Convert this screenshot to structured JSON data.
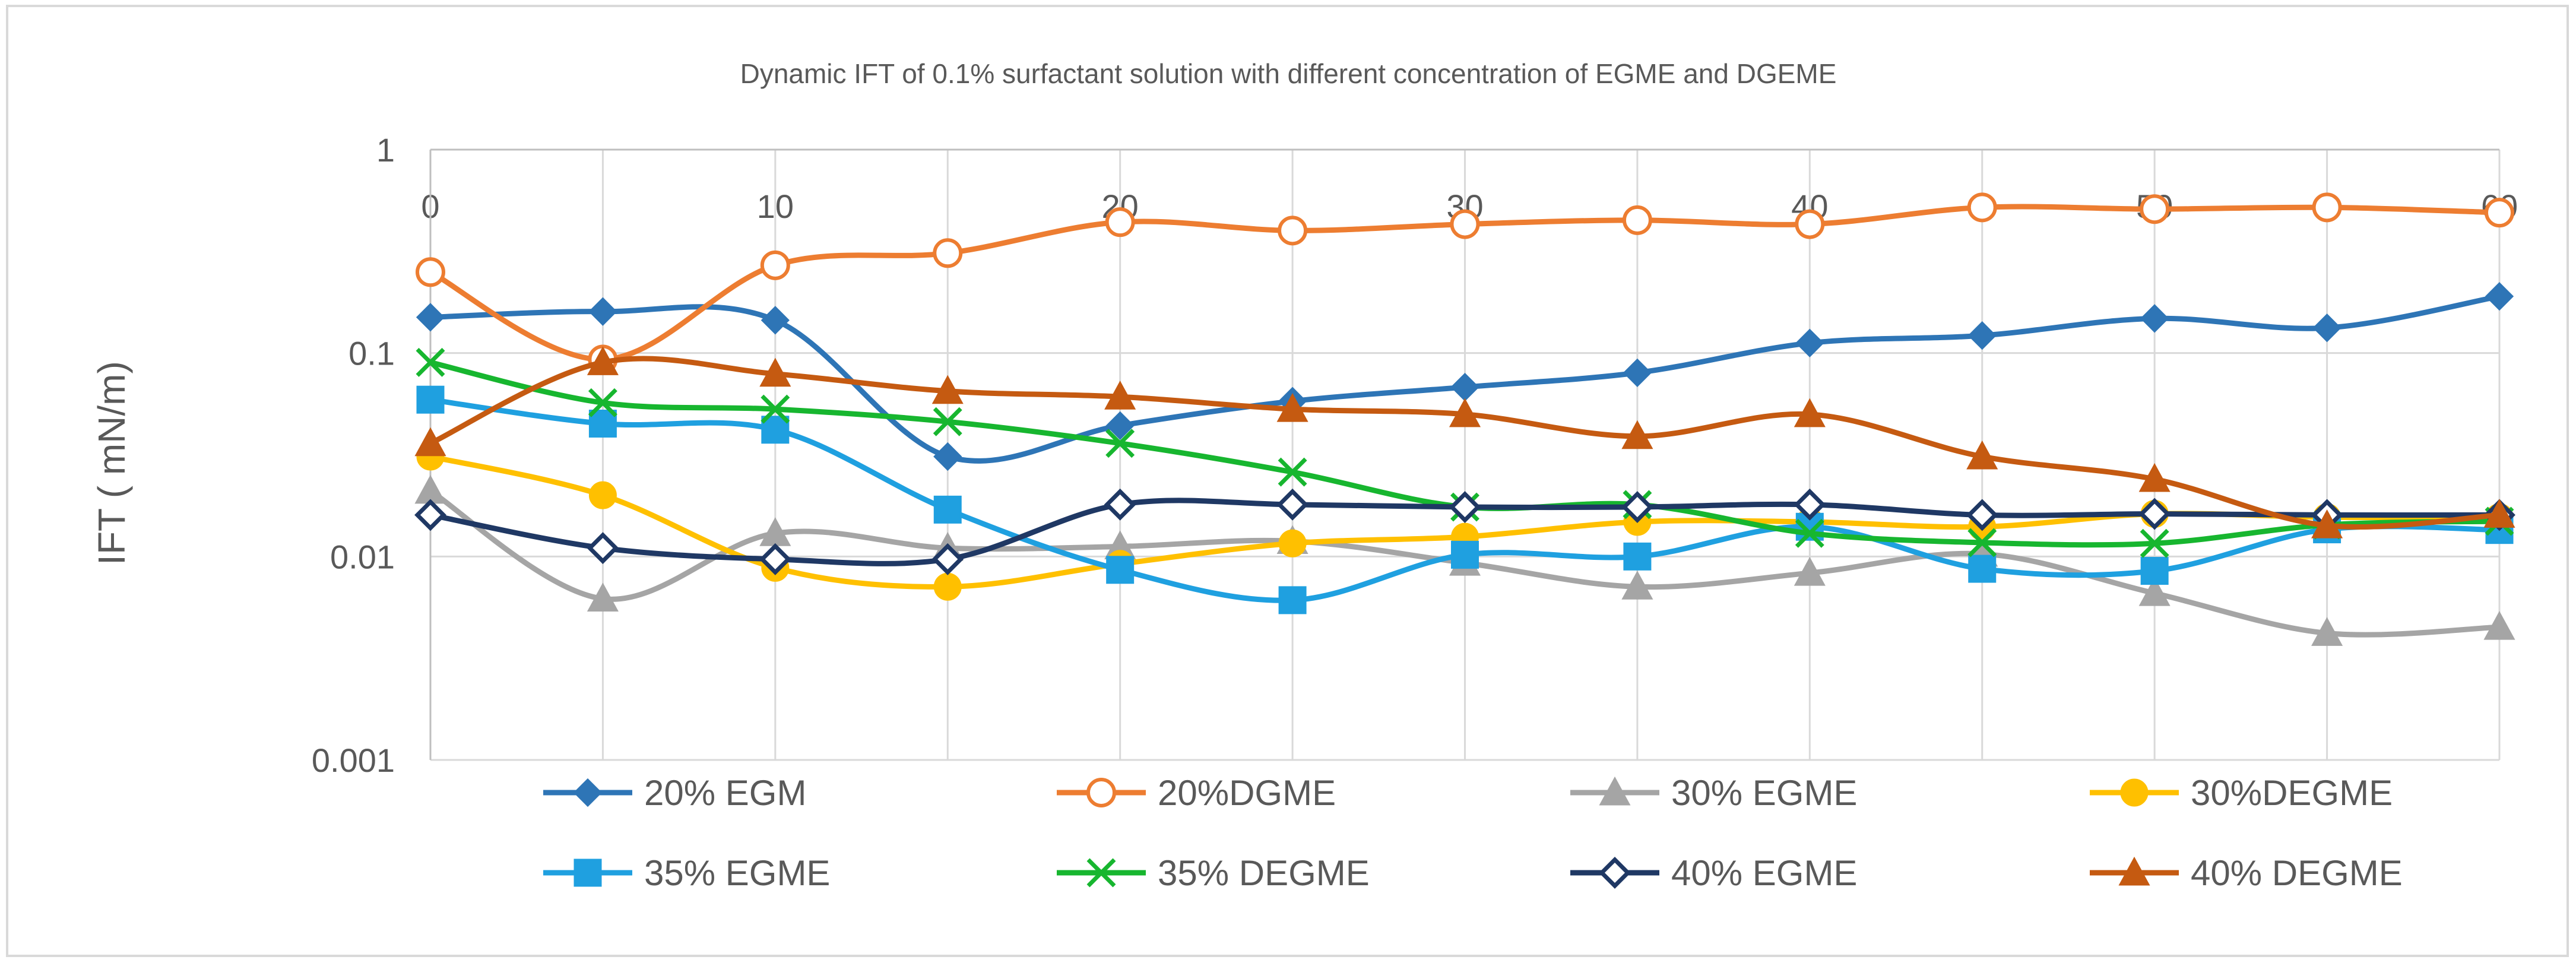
{
  "chart_data": {
    "type": "line",
    "title": "Dynamic IFT of 0.1% surfactant solution with different concentration of EGME and DGEME",
    "xlabel": "",
    "ylabel": "IFT ( mN/m)",
    "yscale": "log",
    "ylim": [
      0.001,
      1
    ],
    "xlim": [
      0,
      60
    ],
    "y_ticks": [
      "1",
      "0.1",
      "0.01",
      "0.001"
    ],
    "x_ticks": [
      "0",
      "10",
      "20",
      "30",
      "40",
      "50",
      "60"
    ],
    "x": [
      0,
      5,
      10,
      15,
      20,
      25,
      30,
      35,
      40,
      45,
      50,
      55,
      60
    ],
    "legend_position": "bottom",
    "series": [
      {
        "name": "20% EGM",
        "color": "#2E75B6",
        "marker": "diamond",
        "filled": true,
        "values": [
          0.15,
          0.16,
          0.145,
          0.031,
          0.044,
          0.058,
          0.068,
          0.08,
          0.112,
          0.122,
          0.148,
          0.133,
          0.19
        ]
      },
      {
        "name": "20%DGME",
        "color": "#ED7D31",
        "marker": "circle",
        "filled": false,
        "values": [
          0.25,
          0.093,
          0.27,
          0.31,
          0.44,
          0.4,
          0.43,
          0.45,
          0.43,
          0.52,
          0.51,
          0.52,
          0.49
        ]
      },
      {
        "name": "30% EGME",
        "color": "#A5A5A5",
        "marker": "triangle",
        "filled": true,
        "values": [
          0.021,
          0.0062,
          0.013,
          0.011,
          0.0112,
          0.0119,
          0.0093,
          0.0071,
          0.0083,
          0.0103,
          0.0066,
          0.0042,
          0.0045
        ]
      },
      {
        "name": "30%DEGME",
        "color": "#FFC000",
        "marker": "circle",
        "filled": true,
        "values": [
          0.031,
          0.02,
          0.0088,
          0.0071,
          0.0092,
          0.0116,
          0.0125,
          0.0148,
          0.0148,
          0.014,
          0.0162,
          0.0156,
          0.0156
        ]
      },
      {
        "name": "35% EGME",
        "color": "#1FA0E0",
        "marker": "square",
        "filled": true,
        "values": [
          0.059,
          0.045,
          0.042,
          0.017,
          0.0086,
          0.0061,
          0.0102,
          0.01,
          0.014,
          0.0087,
          0.0085,
          0.0136,
          0.0135
        ]
      },
      {
        "name": "35% DEGME",
        "color": "#17B62F",
        "marker": "x",
        "filled": true,
        "values": [
          0.09,
          0.057,
          0.053,
          0.046,
          0.036,
          0.026,
          0.0175,
          0.018,
          0.013,
          0.0117,
          0.0116,
          0.0143,
          0.0149
        ]
      },
      {
        "name": "40% EGME",
        "color": "#1F3864",
        "marker": "diamond",
        "filled": false,
        "values": [
          0.016,
          0.011,
          0.0097,
          0.0097,
          0.018,
          0.018,
          0.0175,
          0.0175,
          0.018,
          0.016,
          0.0162,
          0.016,
          0.016
        ]
      },
      {
        "name": "40% DEGME",
        "color": "#C55A11",
        "marker": "triangle",
        "filled": true,
        "values": [
          0.036,
          0.09,
          0.079,
          0.065,
          0.061,
          0.053,
          0.05,
          0.039,
          0.05,
          0.031,
          0.024,
          0.0142,
          0.016
        ]
      }
    ]
  }
}
